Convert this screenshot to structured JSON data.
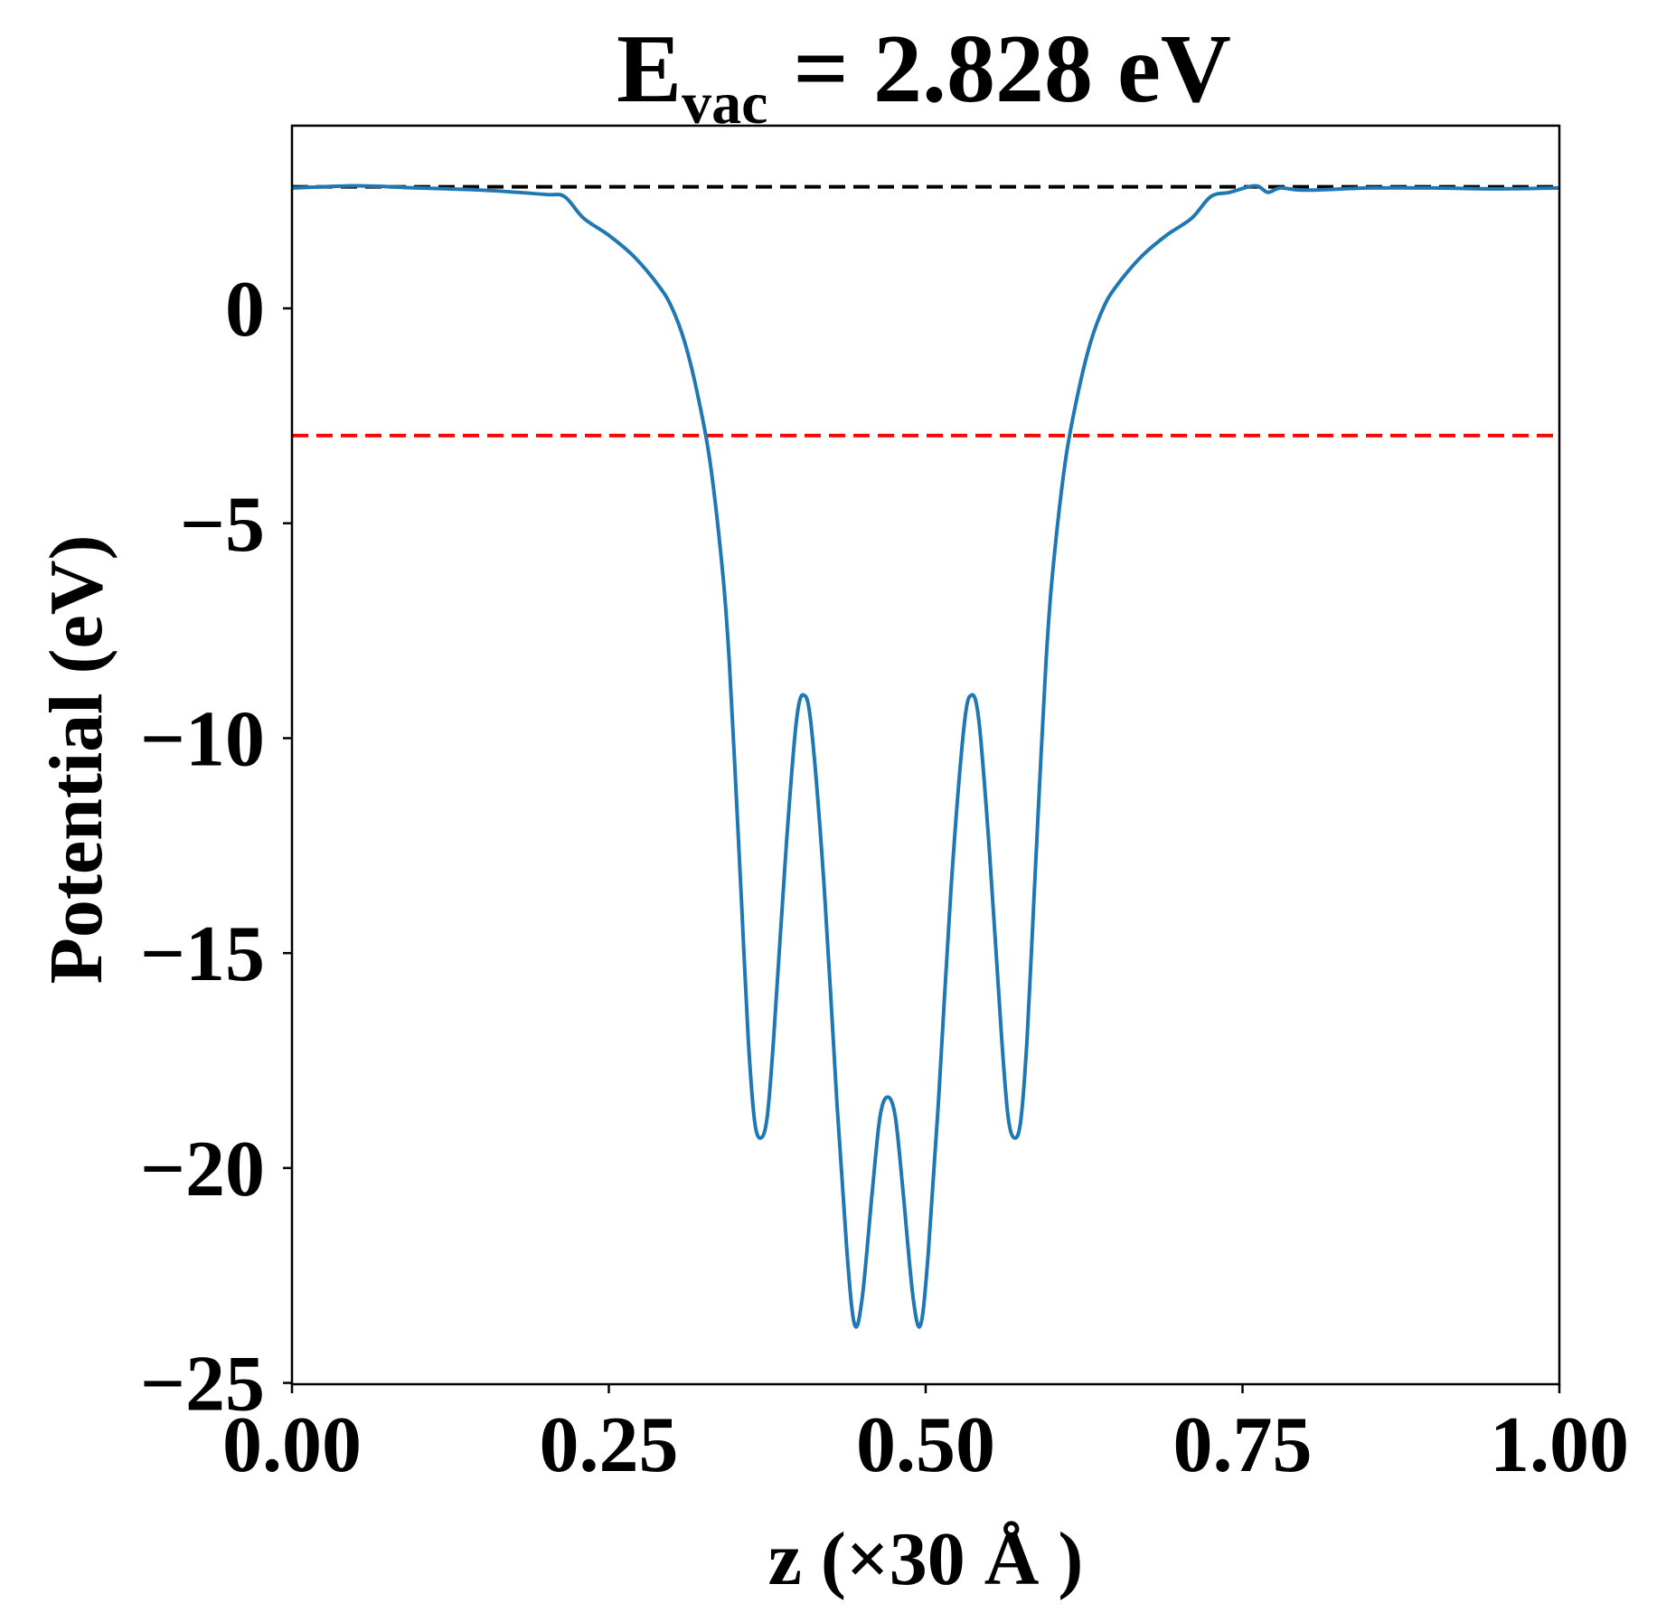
{
  "chart_data": {
    "type": "line",
    "title": "E",
    "title_subscript": "vac",
    "title_rest": "= 2.828 eV",
    "xlabel": "z (×30 Å )",
    "ylabel": "Potential (eV)",
    "xlim": [
      0,
      1
    ],
    "ylim": [
      -25.03,
      4.25
    ],
    "xticks": [
      {
        "value": 0,
        "label": "0.00"
      },
      {
        "value": 0.25,
        "label": "0.25"
      },
      {
        "value": 0.5,
        "label": "0.50"
      },
      {
        "value": 0.75,
        "label": "0.75"
      },
      {
        "value": 1,
        "label": "1.00"
      }
    ],
    "yticks": [
      {
        "value": -25,
        "label": "−25"
      },
      {
        "value": -20,
        "label": "−20"
      },
      {
        "value": -15,
        "label": "−15"
      },
      {
        "value": -10,
        "label": "−10"
      },
      {
        "value": -5,
        "label": "−5"
      },
      0
    ],
    "hlines": [
      {
        "value": 2.828,
        "color": "#000000"
      },
      {
        "value": -2.96,
        "color": "#ff0000"
      }
    ],
    "x": [
      0,
      0.05,
      0.1,
      0.15,
      0.2,
      0.215,
      0.23,
      0.25,
      0.27,
      0.29,
      0.3,
      0.31,
      0.32,
      0.33,
      0.34,
      0.345,
      0.35,
      0.355,
      0.36,
      0.365,
      0.37,
      0.375,
      0.38,
      0.39,
      0.398,
      0.404,
      0.41,
      0.42,
      0.43,
      0.438,
      0.444,
      0.45,
      0.458,
      0.464,
      0.47,
      0.476,
      0.482,
      0.49,
      0.496,
      0.502,
      0.51,
      0.52,
      0.53,
      0.536,
      0.542,
      0.55,
      0.56,
      0.565,
      0.57,
      0.575,
      0.58,
      0.585,
      0.59,
      0.595,
      0.6,
      0.61,
      0.62,
      0.63,
      0.64,
      0.65,
      0.67,
      0.69,
      0.71,
      0.725,
      0.74,
      0.76,
      0.77,
      0.78,
      0.8,
      0.85,
      0.9,
      0.95,
      1.0
    ],
    "series": [
      {
        "name": "potential",
        "color": "#1f77b4",
        "values": [
          2.8,
          2.85,
          2.8,
          2.75,
          2.65,
          2.6,
          2.1,
          1.7,
          1.2,
          0.5,
          0.0,
          -0.8,
          -2.0,
          -3.6,
          -6.2,
          -8.2,
          -11,
          -14,
          -17,
          -18.9,
          -19.3,
          -18.8,
          -17,
          -12.5,
          -9.6,
          -9.0,
          -9.8,
          -13.5,
          -18.5,
          -22,
          -23.65,
          -23,
          -20.5,
          -18.8,
          -18.35,
          -18.8,
          -20.5,
          -23,
          -23.65,
          -22,
          -18.5,
          -13.5,
          -9.8,
          -9.0,
          -9.6,
          -12.5,
          -17,
          -18.8,
          -19.3,
          -18.9,
          -17,
          -14,
          -11,
          -8.2,
          -6.2,
          -3.6,
          -2.0,
          -0.8,
          0.0,
          0.5,
          1.2,
          1.7,
          2.1,
          2.6,
          2.7,
          2.85,
          2.7,
          2.8,
          2.75,
          2.8,
          2.8,
          2.78,
          2.8
        ]
      }
    ]
  }
}
